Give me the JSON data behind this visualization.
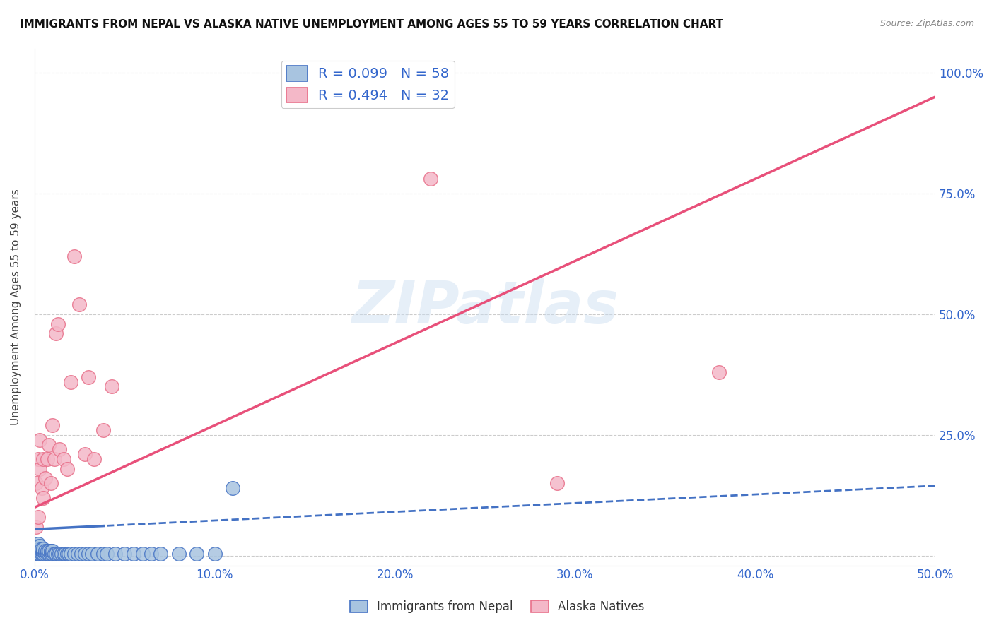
{
  "title": "IMMIGRANTS FROM NEPAL VS ALASKA NATIVE UNEMPLOYMENT AMONG AGES 55 TO 59 YEARS CORRELATION CHART",
  "source": "Source: ZipAtlas.com",
  "ylabel": "Unemployment Among Ages 55 to 59 years",
  "xlim": [
    0.0,
    0.5
  ],
  "ylim": [
    -0.02,
    1.05
  ],
  "xticks": [
    0.0,
    0.1,
    0.2,
    0.3,
    0.4,
    0.5
  ],
  "yticks": [
    0.0,
    0.25,
    0.5,
    0.75,
    1.0
  ],
  "xticklabels": [
    "0.0%",
    "10.0%",
    "20.0%",
    "30.0%",
    "40.0%",
    "50.0%"
  ],
  "right_yticklabels": [
    "",
    "25.0%",
    "50.0%",
    "75.0%",
    "100.0%"
  ],
  "watermark": "ZIPatlas",
  "legend1_label": "R = 0.099   N = 58",
  "legend2_label": "R = 0.494   N = 32",
  "nepal_color": "#a8c4e0",
  "nepal_edge_color": "#4472c4",
  "alaska_color": "#f4b8c8",
  "alaska_edge_color": "#e8708a",
  "trend_nepal_color": "#4472c4",
  "trend_alaska_color": "#e8507a",
  "nepal_trend_intercept": 0.055,
  "nepal_trend_slope": 0.18,
  "alaska_trend_intercept": 0.1,
  "alaska_trend_slope": 1.7,
  "nepal_x": [
    0.001,
    0.001,
    0.001,
    0.001,
    0.002,
    0.002,
    0.002,
    0.002,
    0.002,
    0.003,
    0.003,
    0.003,
    0.003,
    0.004,
    0.004,
    0.004,
    0.005,
    0.005,
    0.005,
    0.006,
    0.006,
    0.007,
    0.007,
    0.008,
    0.008,
    0.009,
    0.009,
    0.01,
    0.01,
    0.011,
    0.012,
    0.013,
    0.014,
    0.015,
    0.016,
    0.017,
    0.018,
    0.019,
    0.02,
    0.022,
    0.024,
    0.026,
    0.028,
    0.03,
    0.032,
    0.035,
    0.038,
    0.04,
    0.045,
    0.05,
    0.055,
    0.06,
    0.065,
    0.07,
    0.08,
    0.09,
    0.1,
    0.11
  ],
  "nepal_y": [
    0.005,
    0.01,
    0.015,
    0.02,
    0.005,
    0.01,
    0.015,
    0.02,
    0.025,
    0.005,
    0.01,
    0.015,
    0.02,
    0.005,
    0.01,
    0.015,
    0.005,
    0.01,
    0.015,
    0.005,
    0.01,
    0.005,
    0.01,
    0.005,
    0.01,
    0.005,
    0.01,
    0.005,
    0.01,
    0.005,
    0.005,
    0.005,
    0.005,
    0.005,
    0.005,
    0.005,
    0.005,
    0.005,
    0.005,
    0.005,
    0.005,
    0.005,
    0.005,
    0.005,
    0.005,
    0.005,
    0.005,
    0.005,
    0.005,
    0.005,
    0.005,
    0.005,
    0.005,
    0.005,
    0.005,
    0.005,
    0.005,
    0.14
  ],
  "alaska_x": [
    0.001,
    0.001,
    0.002,
    0.002,
    0.003,
    0.003,
    0.004,
    0.005,
    0.005,
    0.006,
    0.007,
    0.008,
    0.009,
    0.01,
    0.011,
    0.012,
    0.013,
    0.014,
    0.016,
    0.018,
    0.02,
    0.022,
    0.025,
    0.028,
    0.03,
    0.033,
    0.038,
    0.043,
    0.16,
    0.22,
    0.29,
    0.38
  ],
  "alaska_y": [
    0.06,
    0.15,
    0.08,
    0.2,
    0.18,
    0.24,
    0.14,
    0.12,
    0.2,
    0.16,
    0.2,
    0.23,
    0.15,
    0.27,
    0.2,
    0.46,
    0.48,
    0.22,
    0.2,
    0.18,
    0.36,
    0.62,
    0.52,
    0.21,
    0.37,
    0.2,
    0.26,
    0.35,
    0.94,
    0.78,
    0.15,
    0.38
  ]
}
